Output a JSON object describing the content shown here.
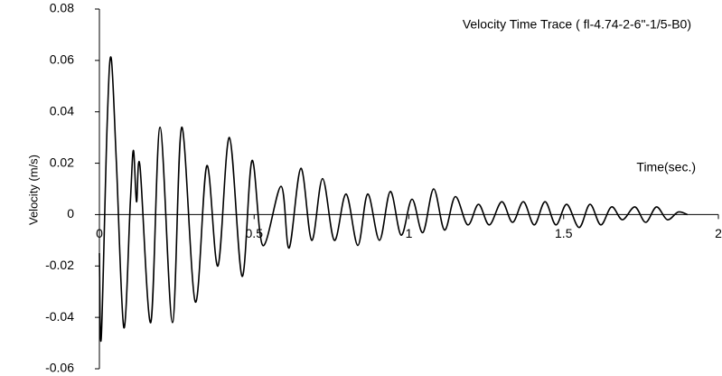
{
  "chart_data": {
    "type": "line",
    "title": "Velocity Time Trace ( fl-4.74-2-6\"-1/5-B0)",
    "x_label": "Time(sec.)",
    "y_label": "Velocity (m/s)",
    "x": [
      0,
      0.006,
      0.025,
      0.038,
      0.055,
      0.079,
      0.1,
      0.11,
      0.12,
      0.131,
      0.166,
      0.196,
      0.236,
      0.266,
      0.31,
      0.347,
      0.383,
      0.42,
      0.461,
      0.493,
      0.528,
      0.587,
      0.613,
      0.651,
      0.686,
      0.721,
      0.759,
      0.797,
      0.835,
      0.867,
      0.905,
      0.94,
      0.975,
      1.01,
      1.045,
      1.08,
      1.115,
      1.15,
      1.19,
      1.225,
      1.26,
      1.3,
      1.335,
      1.37,
      1.405,
      1.44,
      1.475,
      1.51,
      1.55,
      1.585,
      1.62,
      1.655,
      1.69,
      1.73,
      1.765,
      1.8,
      1.835,
      1.87,
      1.9
    ],
    "series": [
      {
        "name": "Velocity",
        "color": "#000000",
        "values": [
          -0.015,
          -0.048,
          0.035,
          0.061,
          0.02,
          -0.044,
          0.005,
          0.025,
          0.005,
          0.019,
          -0.042,
          0.034,
          -0.042,
          0.034,
          -0.034,
          0.019,
          -0.02,
          0.03,
          -0.024,
          0.021,
          -0.012,
          0.011,
          -0.013,
          0.018,
          -0.01,
          0.014,
          -0.01,
          0.008,
          -0.012,
          0.008,
          -0.01,
          0.009,
          -0.008,
          0.006,
          -0.007,
          0.01,
          -0.006,
          0.007,
          -0.004,
          0.004,
          -0.004,
          0.005,
          -0.003,
          0.005,
          -0.004,
          0.005,
          -0.004,
          0.004,
          -0.005,
          0.004,
          -0.004,
          0.003,
          -0.002,
          0.003,
          -0.003,
          0.003,
          -0.002,
          0.001,
          0
        ]
      }
    ],
    "xlim": [
      0,
      2
    ],
    "xticks": [
      0,
      0.5,
      1,
      1.5,
      2
    ],
    "ylim": [
      -0.06,
      0.08
    ],
    "yticks": [
      -0.06,
      -0.04,
      -0.02,
      0,
      0.02,
      0.04,
      0.06,
      0.08
    ],
    "grid": false
  }
}
